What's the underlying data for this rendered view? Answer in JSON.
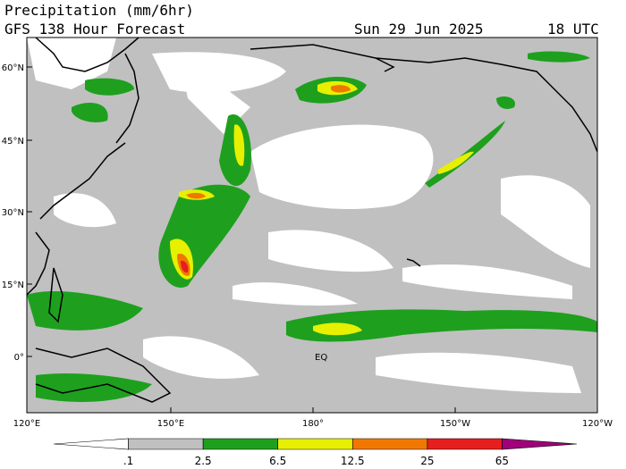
{
  "header": {
    "title": "Precipitation (mm/6hr)",
    "subtitle": "GFS 138 Hour Forecast",
    "date": "Sun 29 Jun 2025",
    "time": "18 UTC"
  },
  "map": {
    "lat_labels": [
      "60°N",
      "45°N",
      "30°N",
      "15°N",
      "0°"
    ],
    "lon_labels": [
      "120°E",
      "150°E",
      "180°",
      "150°W",
      "120°W"
    ],
    "annotation": "EQ"
  },
  "legend": {
    "labels": [
      ".1",
      "2.5",
      "6.5",
      "12.5",
      "25",
      "65"
    ],
    "colors": [
      "#ffffff",
      "#c0c0c0",
      "#1ea01e",
      "#e6f000",
      "#f07800",
      "#e61e1e",
      "#a0007a"
    ]
  }
}
